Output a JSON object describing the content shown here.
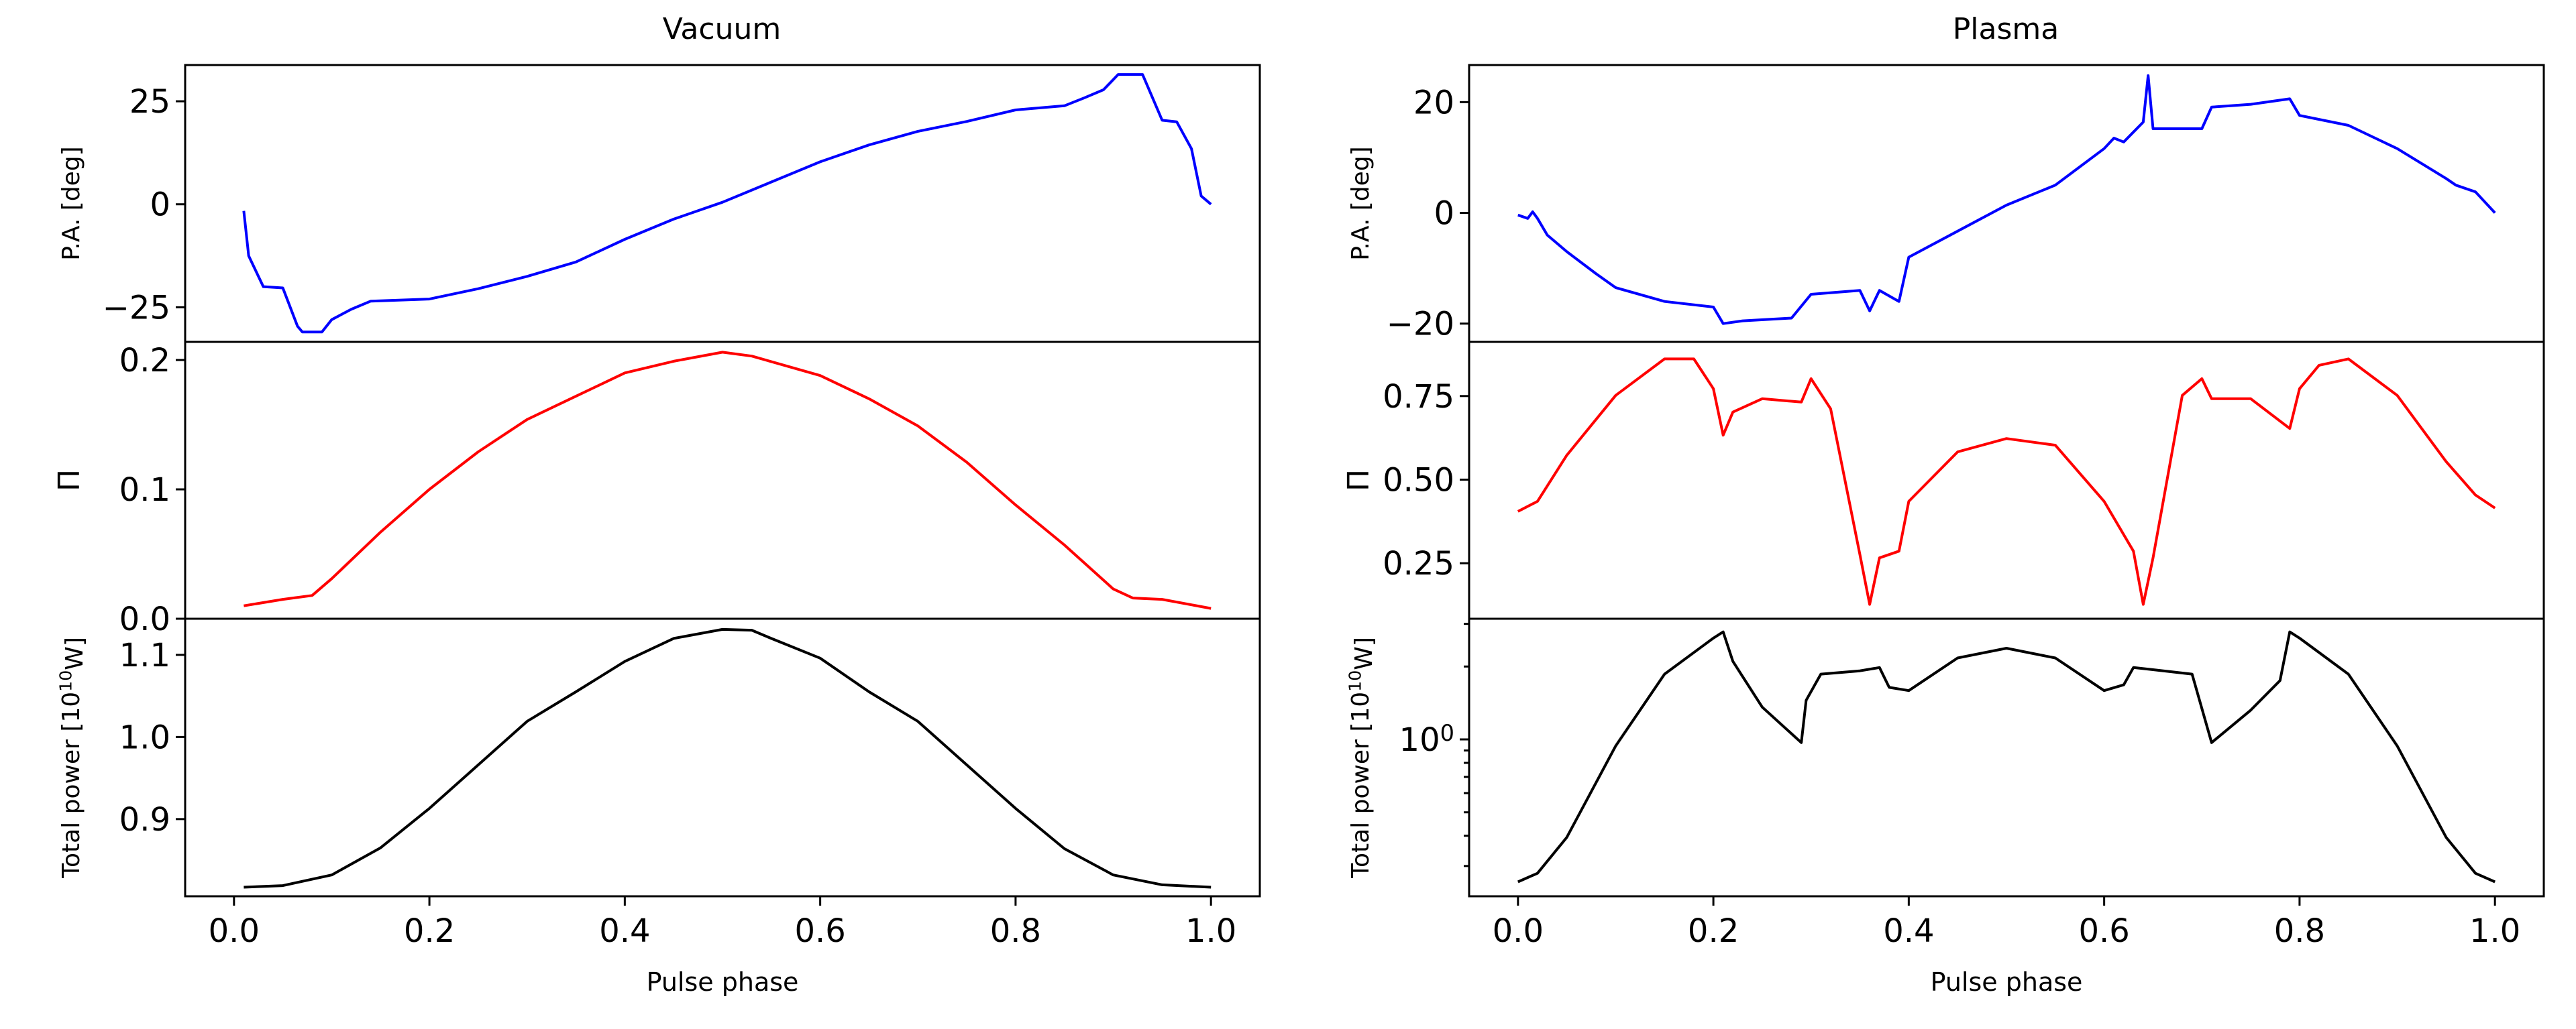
{
  "chart_data": [
    {
      "title": "Vacuum",
      "type": "line",
      "xlabel": "Pulse phase",
      "xlim": [
        -0.05,
        1.05
      ],
      "xticks": [
        0.0,
        0.2,
        0.4,
        0.6,
        0.8,
        1.0
      ],
      "xtick_labels": [
        "0.0",
        "0.2",
        "0.4",
        "0.6",
        "0.8",
        "1.0"
      ],
      "panels": [
        {
          "ylabel": "P.A. [deg]",
          "color": "#0000ff",
          "ylim": [
            -33.4,
            33.8
          ],
          "yscale": "linear",
          "yticks": [
            25,
            0,
            -25
          ],
          "ytick_labels": [
            "25",
            "0",
            "−25"
          ],
          "x": [
            0.01,
            0.015,
            0.03,
            0.05,
            0.065,
            0.07,
            0.09,
            0.1,
            0.12,
            0.14,
            0.2,
            0.25,
            0.3,
            0.35,
            0.4,
            0.45,
            0.5,
            0.55,
            0.6,
            0.65,
            0.7,
            0.75,
            0.8,
            0.85,
            0.87,
            0.89,
            0.905,
            0.93,
            0.95,
            0.965,
            0.98,
            0.99,
            1.0
          ],
          "y": [
            -1.6,
            -12.5,
            -20,
            -20.3,
            -29.6,
            -31,
            -31,
            -28,
            -25.5,
            -23.5,
            -23,
            -20.5,
            -17.5,
            -14,
            -8.5,
            -3.6,
            0.5,
            5.4,
            10.3,
            14.4,
            17.7,
            20.1,
            22.9,
            23.9,
            25.8,
            27.8,
            31.5,
            31.5,
            20.4,
            20,
            13.5,
            2,
            0
          ]
        },
        {
          "ylabel": "Π",
          "color": "#ff0000",
          "ylim": [
            0,
            0.214
          ],
          "yscale": "linear",
          "yticks": [
            0.2,
            0.1,
            0.0
          ],
          "ytick_labels": [
            "0.2",
            "0.1",
            "0.0"
          ],
          "x": [
            0.01,
            0.05,
            0.08,
            0.1,
            0.15,
            0.2,
            0.25,
            0.3,
            0.35,
            0.4,
            0.45,
            0.5,
            0.53,
            0.6,
            0.65,
            0.7,
            0.75,
            0.8,
            0.85,
            0.9,
            0.92,
            0.95,
            1.0
          ],
          "y": [
            0.01,
            0.015,
            0.018,
            0.031,
            0.067,
            0.1,
            0.129,
            0.154,
            0.172,
            0.19,
            0.199,
            0.206,
            0.203,
            0.188,
            0.17,
            0.149,
            0.121,
            0.088,
            0.057,
            0.023,
            0.016,
            0.015,
            0.008
          ]
        },
        {
          "ylabel": "Total power [10^10W]",
          "color": "#000000",
          "ylim": [
            0.806,
            1.144
          ],
          "yscale": "linear",
          "yticks": [
            1.1,
            1.0,
            0.9
          ],
          "ytick_labels": [
            "1.1",
            "1.0",
            "0.9"
          ],
          "x": [
            0.01,
            0.05,
            0.1,
            0.15,
            0.2,
            0.25,
            0.3,
            0.35,
            0.4,
            0.45,
            0.5,
            0.53,
            0.55,
            0.6,
            0.65,
            0.7,
            0.75,
            0.8,
            0.85,
            0.9,
            0.95,
            1.0
          ],
          "y": [
            0.817,
            0.819,
            0.832,
            0.865,
            0.913,
            0.966,
            1.019,
            1.055,
            1.092,
            1.12,
            1.131,
            1.13,
            1.12,
            1.096,
            1.055,
            1.019,
            0.966,
            0.913,
            0.864,
            0.832,
            0.82,
            0.817
          ]
        }
      ]
    },
    {
      "title": "Plasma",
      "type": "line",
      "xlabel": "Pulse phase",
      "xlim": [
        -0.05,
        1.05
      ],
      "xticks": [
        0.0,
        0.2,
        0.4,
        0.6,
        0.8,
        1.0
      ],
      "xtick_labels": [
        "0.0",
        "0.2",
        "0.4",
        "0.6",
        "0.8",
        "1.0"
      ],
      "panels": [
        {
          "ylabel": "P.A. [deg]",
          "color": "#0000ff",
          "ylim": [
            -23.3,
            26.7
          ],
          "yscale": "linear",
          "yticks": [
            20,
            0,
            -20
          ],
          "ytick_labels": [
            "20",
            "0",
            "−20"
          ],
          "x": [
            0.0,
            0.01,
            0.015,
            0.02,
            0.03,
            0.05,
            0.08,
            0.1,
            0.15,
            0.2,
            0.21,
            0.23,
            0.28,
            0.3,
            0.35,
            0.36,
            0.37,
            0.39,
            0.4,
            0.45,
            0.5,
            0.55,
            0.6,
            0.61,
            0.62,
            0.64,
            0.645,
            0.65,
            0.7,
            0.71,
            0.75,
            0.79,
            0.8,
            0.85,
            0.9,
            0.95,
            0.96,
            0.98,
            1.0
          ],
          "y": [
            -0.4,
            -1,
            0.2,
            -1,
            -4,
            -7,
            -11,
            -13.5,
            -16,
            -17,
            -20,
            -19.5,
            -19,
            -14.7,
            -14,
            -17.7,
            -14,
            -16,
            -8,
            -3.3,
            1.4,
            5,
            11.6,
            13.5,
            12.8,
            16.4,
            24.8,
            15.2,
            15.2,
            19.1,
            19.6,
            20.6,
            17.6,
            15.8,
            11.6,
            6.2,
            5,
            3.8,
            0
          ]
        },
        {
          "ylabel": "Π",
          "color": "#ff0000",
          "ylim": [
            0.084,
            0.912
          ],
          "yscale": "linear",
          "yticks": [
            0.75,
            0.5,
            0.25
          ],
          "ytick_labels": [
            "0.75",
            "0.50",
            "0.25"
          ],
          "x": [
            0.0,
            0.02,
            0.05,
            0.1,
            0.15,
            0.18,
            0.2,
            0.21,
            0.22,
            0.25,
            0.29,
            0.3,
            0.32,
            0.35,
            0.36,
            0.37,
            0.39,
            0.4,
            0.45,
            0.5,
            0.55,
            0.6,
            0.63,
            0.64,
            0.65,
            0.68,
            0.7,
            0.71,
            0.75,
            0.79,
            0.8,
            0.82,
            0.85,
            0.9,
            0.95,
            0.98,
            1.0
          ],
          "y": [
            0.405,
            0.435,
            0.573,
            0.752,
            0.861,
            0.861,
            0.772,
            0.633,
            0.702,
            0.742,
            0.732,
            0.802,
            0.712,
            0.276,
            0.127,
            0.266,
            0.286,
            0.435,
            0.583,
            0.623,
            0.603,
            0.435,
            0.286,
            0.127,
            0.266,
            0.752,
            0.802,
            0.742,
            0.742,
            0.653,
            0.772,
            0.842,
            0.861,
            0.752,
            0.554,
            0.454,
            0.415
          ]
        },
        {
          "ylabel": "Total power [10^10W]",
          "color": "#000000",
          "ylim": [
            0.225,
            3.15
          ],
          "yscale": "log",
          "yticks": [
            1
          ],
          "ytick_labels": [
            "10^0"
          ],
          "x": [
            0.0,
            0.02,
            0.05,
            0.1,
            0.15,
            0.2,
            0.21,
            0.22,
            0.25,
            0.29,
            0.295,
            0.31,
            0.35,
            0.37,
            0.38,
            0.4,
            0.45,
            0.5,
            0.55,
            0.6,
            0.62,
            0.63,
            0.65,
            0.69,
            0.71,
            0.75,
            0.78,
            0.79,
            0.8,
            0.85,
            0.9,
            0.95,
            0.98,
            1.0
          ],
          "y": [
            0.258,
            0.28,
            0.394,
            0.94,
            1.86,
            2.62,
            2.78,
            2.1,
            1.36,
            0.97,
            1.45,
            1.86,
            1.92,
            1.98,
            1.64,
            1.59,
            2.17,
            2.38,
            2.17,
            1.59,
            1.68,
            1.98,
            1.94,
            1.86,
            0.97,
            1.32,
            1.75,
            2.78,
            2.62,
            1.86,
            0.94,
            0.394,
            0.28,
            0.258
          ]
        }
      ]
    }
  ]
}
